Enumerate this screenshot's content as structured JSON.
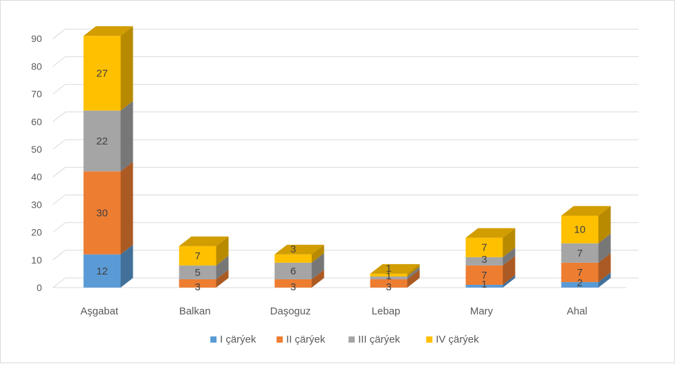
{
  "chart_data": {
    "type": "bar",
    "stacked": true,
    "three_d": true,
    "categories": [
      "Aşgabat",
      "Balkan",
      "Daşoguz",
      "Lebap",
      "Mary",
      "Ahal"
    ],
    "series": [
      {
        "name": "I çärýek",
        "color": "#5b9bd5",
        "values": [
          12,
          0,
          0,
          0,
          1,
          2
        ],
        "labels": [
          "12",
          "",
          "",
          "",
          "1",
          "2"
        ]
      },
      {
        "name": "II çärýek",
        "color": "#ed7d31",
        "values": [
          30,
          3,
          3,
          3,
          7,
          7
        ],
        "labels": [
          "30",
          "3",
          "3",
          "3",
          "7",
          "7"
        ]
      },
      {
        "name": "III çärýek",
        "color": "#a5a5a5",
        "values": [
          22,
          5,
          6,
          1,
          3,
          7
        ],
        "labels": [
          "22",
          "5",
          "6",
          "1",
          "3",
          "7"
        ]
      },
      {
        "name": "IV çärýek",
        "color": "#ffc000",
        "values": [
          27,
          7,
          3,
          1,
          7,
          10
        ],
        "labels": [
          "27",
          "7",
          "3",
          "1",
          "7",
          "10"
        ]
      }
    ],
    "ylim": [
      0,
      90
    ],
    "yticks": [
      "0",
      "10",
      "20",
      "30",
      "40",
      "50",
      "60",
      "70",
      "80",
      "90"
    ],
    "grid": true,
    "legend_position": "bottom"
  }
}
